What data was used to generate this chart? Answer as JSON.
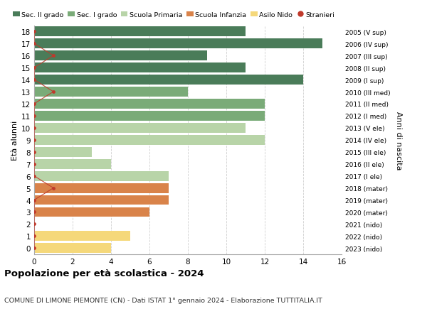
{
  "ages": [
    18,
    17,
    16,
    15,
    14,
    13,
    12,
    11,
    10,
    9,
    8,
    7,
    6,
    5,
    4,
    3,
    2,
    1,
    0
  ],
  "right_labels": [
    "2005 (V sup)",
    "2006 (IV sup)",
    "2007 (III sup)",
    "2008 (II sup)",
    "2009 (I sup)",
    "2010 (III med)",
    "2011 (II med)",
    "2012 (I med)",
    "2013 (V ele)",
    "2014 (IV ele)",
    "2015 (III ele)",
    "2016 (II ele)",
    "2017 (I ele)",
    "2018 (mater)",
    "2019 (mater)",
    "2020 (mater)",
    "2021 (nido)",
    "2022 (nido)",
    "2023 (nido)"
  ],
  "bar_values": [
    11,
    15,
    9,
    11,
    14,
    8,
    12,
    12,
    11,
    12,
    3,
    4,
    7,
    7,
    7,
    6,
    0,
    5,
    4
  ],
  "bar_colors": [
    "#4a7c59",
    "#4a7c59",
    "#4a7c59",
    "#4a7c59",
    "#4a7c59",
    "#7aab78",
    "#7aab78",
    "#7aab78",
    "#b8d4a8",
    "#b8d4a8",
    "#b8d4a8",
    "#b8d4a8",
    "#b8d4a8",
    "#d9834a",
    "#d9834a",
    "#d9834a",
    "#f5d87a",
    "#f5d87a",
    "#f5d87a"
  ],
  "stranieri_values": [
    0,
    0,
    1,
    0,
    0,
    1,
    0,
    0,
    0,
    0,
    0,
    0,
    0,
    1,
    0,
    0,
    0,
    0,
    0
  ],
  "legend_labels": [
    "Sec. II grado",
    "Sec. I grado",
    "Scuola Primaria",
    "Scuola Infanzia",
    "Asilo Nido",
    "Stranieri"
  ],
  "legend_colors": [
    "#4a7c59",
    "#7aab78",
    "#b8d4a8",
    "#d9834a",
    "#f5d87a",
    "#c0392b"
  ],
  "ylabel_left": "Età alunni",
  "ylabel_right": "Anni di nascita",
  "title": "Popolazione per età scolastica - 2024",
  "subtitle": "COMUNE DI LIMONE PIEMONTE (CN) - Dati ISTAT 1° gennaio 2024 - Elaborazione TUTTITALIA.IT",
  "xlim": [
    0,
    16
  ],
  "xticks": [
    0,
    2,
    4,
    6,
    8,
    10,
    12,
    14,
    16
  ],
  "background_color": "#ffffff",
  "grid_color": "#d0d0d0"
}
